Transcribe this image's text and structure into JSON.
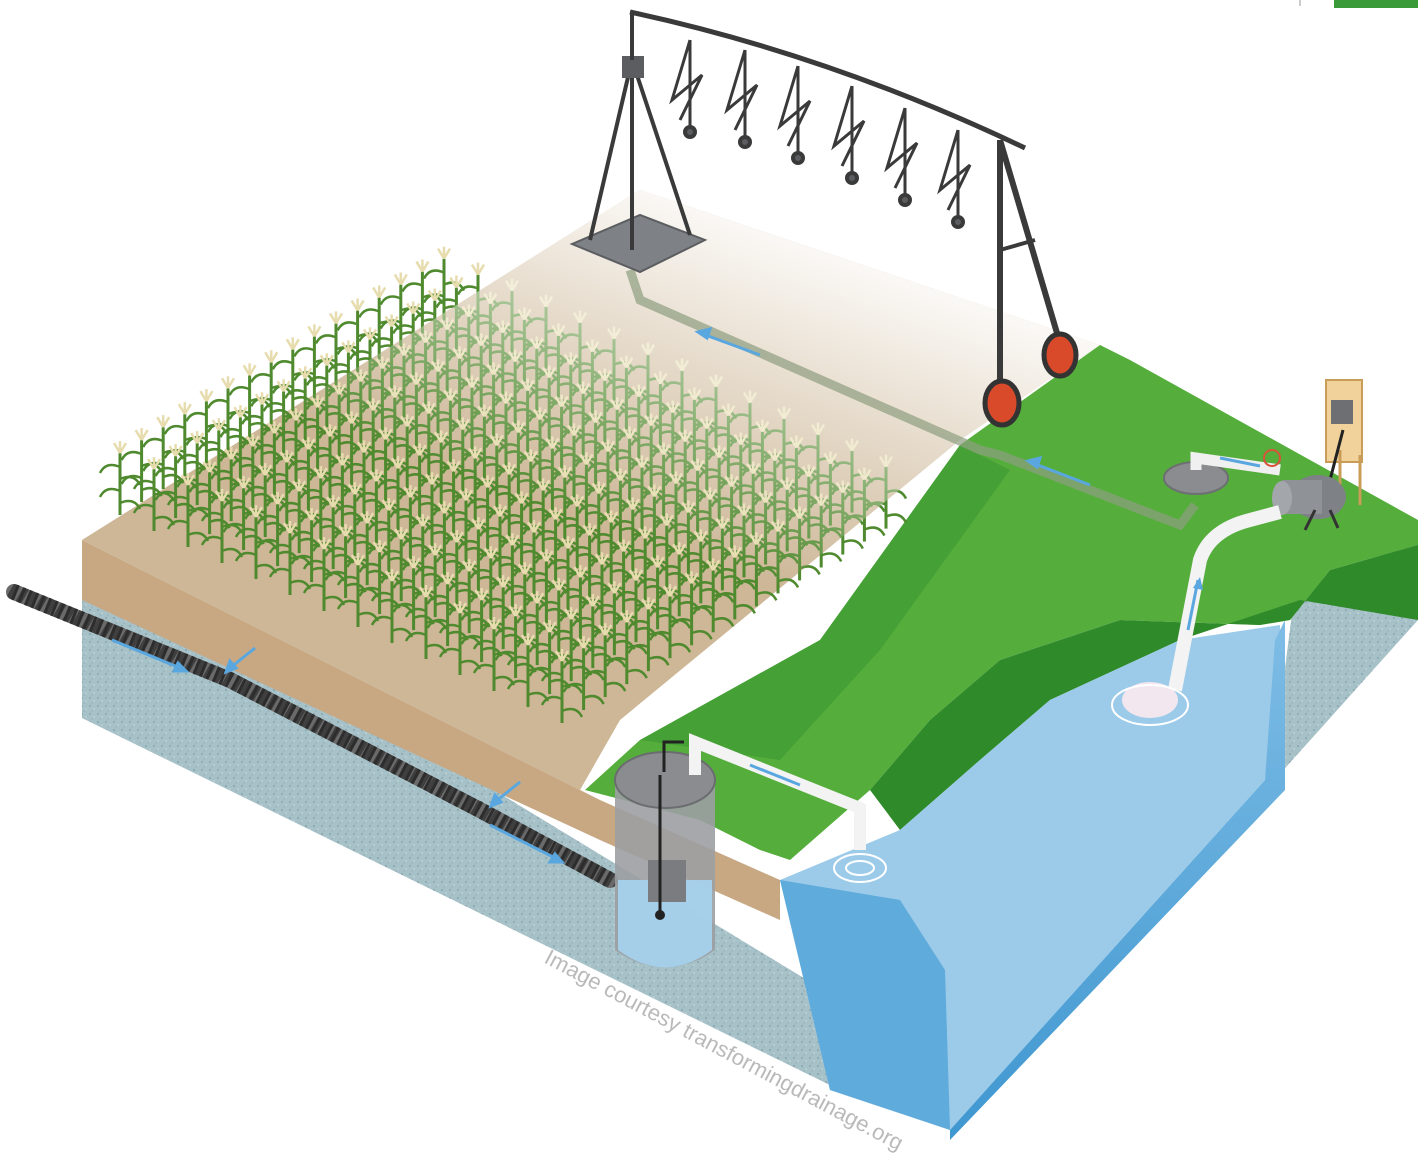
{
  "illustration": {
    "credit": "Image courtesy transformingdrainage.org"
  },
  "colors": {
    "soil": "#c9b192",
    "soil_dark": "#a98f6f",
    "grass": "#4ea938",
    "grass_dark": "#2f8a2a",
    "water": "#8fc4e6",
    "water_deep": "#4aa0d4",
    "subsoil": "#9fbcc4",
    "pipe": "#3f3f3f",
    "flow_arrow": "#5aa7e0",
    "corn": "#4f8a2e",
    "tassel": "#e6dcae",
    "structure_gray": "#8a8c8f",
    "wheel_red": "#d94a2b"
  },
  "icons": {
    "tile_drain": "tile-drain-icon",
    "center_pivot": "center-pivot-icon",
    "pump": "pump-icon",
    "control_box": "control-box-icon",
    "drainage_sump": "drainage-sump-icon",
    "intake_float": "intake-float-icon"
  }
}
